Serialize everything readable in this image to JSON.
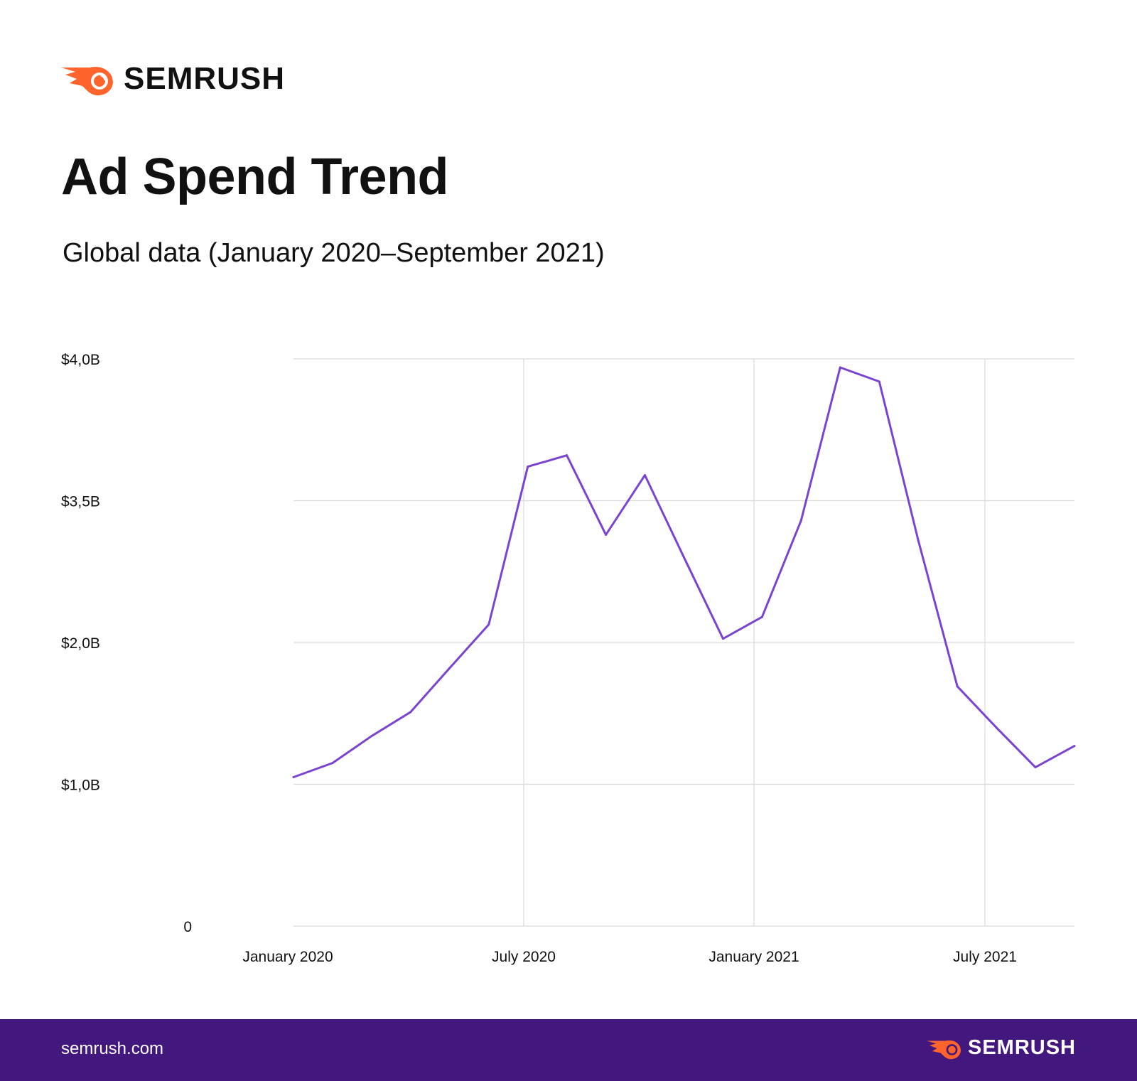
{
  "brand": {
    "name": "SEMRUSH",
    "logo_color": "#ff642d",
    "url": "semrush.com",
    "footer_color": "#42187e"
  },
  "chart_data": {
    "type": "line",
    "title": "Ad Spend Trend",
    "subtitle": "Global data (January 2020–September 2021)",
    "xlabel": "",
    "ylabel": "",
    "x": [
      "2020-01",
      "2020-02",
      "2020-03",
      "2020-04",
      "2020-05",
      "2020-06",
      "2020-07",
      "2020-08",
      "2020-09",
      "2020-10",
      "2020-11",
      "2020-12",
      "2021-01",
      "2021-02",
      "2021-03",
      "2021-04",
      "2021-05",
      "2021-06",
      "2021-07",
      "2021-08",
      "2021-09"
    ],
    "values": [
      1.05,
      1.15,
      1.34,
      1.51,
      1.82,
      2.19,
      3.62,
      3.66,
      3.14,
      3.59,
      2.9,
      2.04,
      2.27,
      3.29,
      3.97,
      3.92,
      3.08,
      1.69,
      1.4,
      1.12,
      1.27
    ],
    "unit": "billion USD",
    "y_ticks": [
      {
        "value": 0,
        "label": "0"
      },
      {
        "value": 1.0,
        "label": "$1,0B"
      },
      {
        "value": 2.0,
        "label": "$2,0B"
      },
      {
        "value": 3.5,
        "label": "$3,5B"
      },
      {
        "value": 4.0,
        "label": "$4,0B"
      }
    ],
    "x_ticks": [
      {
        "index": 0,
        "label": "January 2020",
        "gridline": false
      },
      {
        "index": 6,
        "label": "July 2020",
        "gridline": true
      },
      {
        "index": 12,
        "label": "January 2021",
        "gridline": true
      },
      {
        "index": 18,
        "label": "July 2021",
        "gridline": true
      }
    ],
    "grid": true,
    "line_color": "#7b44d0",
    "grid_color": "#d9d9d9",
    "legend": "none"
  }
}
